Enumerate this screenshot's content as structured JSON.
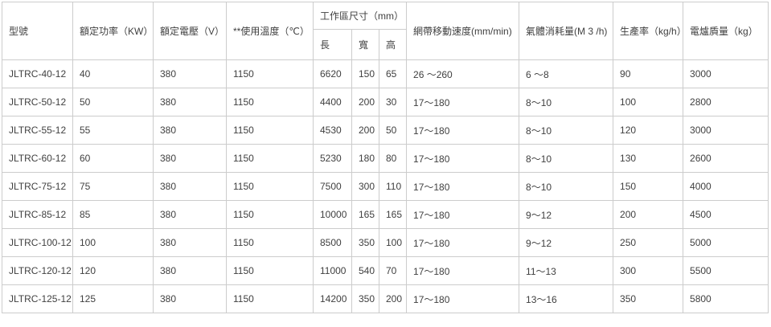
{
  "table": {
    "headers": {
      "model": "型號",
      "rated_power": "額定功率（KW）",
      "rated_voltage": "額定電壓（V）",
      "operating_temp": "**使用溫度（℃）",
      "work_area_group": "工作區尺寸（mm）",
      "length": "長",
      "width": "寬",
      "height": "高",
      "belt_speed": "網帶移動速度(mm/min)",
      "gas_consumption": "氣體消耗量(M 3 /h)",
      "production_rate": "生產率（kg/h）",
      "furnace_weight": "電爐貭量（kg）"
    },
    "column_keys": [
      "model",
      "rated_power",
      "rated_voltage",
      "operating_temp",
      "length",
      "width",
      "height",
      "belt_speed",
      "gas_consumption",
      "production_rate",
      "furnace_weight"
    ],
    "rows": [
      [
        "JLTRC-40-12",
        "40",
        "380",
        "1150",
        "6620",
        "150",
        "65",
        "26 ～260",
        "6 ～8",
        "90",
        "3000"
      ],
      [
        "JLTRC-50-12",
        "50",
        "380",
        "1150",
        "4400",
        "200",
        "30",
        "17～180",
        "8～10",
        "100",
        "2800"
      ],
      [
        "JLTRC-55-12",
        "55",
        "380",
        "1150",
        "4530",
        "200",
        "50",
        "17～180",
        "8～10",
        "120",
        "3000"
      ],
      [
        "JLTRC-60-12",
        "60",
        "380",
        "1150",
        "5230",
        "180",
        "80",
        "17～180",
        "8～10",
        "130",
        "2600"
      ],
      [
        "JLTRC-75-12",
        "75",
        "380",
        "1150",
        "7500",
        "300",
        "110",
        "17～180",
        "8～10",
        "150",
        "4000"
      ],
      [
        "JLTRC-85-12",
        "85",
        "380",
        "1150",
        "10000",
        "165",
        "165",
        "17～180",
        "9～12",
        "200",
        "4500"
      ],
      [
        "JLTRC-100-12",
        "100",
        "380",
        "1150",
        "8500",
        "350",
        "100",
        "17～180",
        "9～12",
        "250",
        "5000"
      ],
      [
        "JLTRC-120-12",
        "120",
        "380",
        "1150",
        "11000",
        "540",
        "70",
        "17～180",
        "11～13",
        "300",
        "5500"
      ],
      [
        "JLTRC-125-12",
        "125",
        "380",
        "1150",
        "14200",
        "350",
        "200",
        "17～180",
        "13～16",
        "350",
        "5800"
      ]
    ]
  },
  "colors": {
    "border": "#cccccc",
    "text": "#404040",
    "background": "#ffffff"
  }
}
